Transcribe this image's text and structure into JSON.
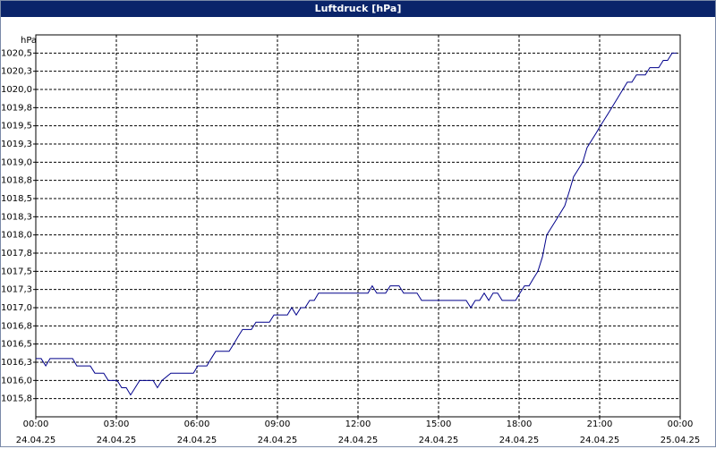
{
  "chart_data": {
    "type": "line",
    "title": "Luftdruck [hPa]",
    "y_label": "hPa",
    "xlim": [
      0,
      24
    ],
    "xticks": [
      {
        "value": 0,
        "label": "00:00\n24.04.25"
      },
      {
        "value": 3,
        "label": "03:00\n24.04.25"
      },
      {
        "value": 6,
        "label": "06:00\n24.04.25"
      },
      {
        "value": 9,
        "label": "09:00\n24.04.25"
      },
      {
        "value": 12,
        "label": "12:00\n24.04.25"
      },
      {
        "value": 15,
        "label": "15:00\n24.04.25"
      },
      {
        "value": 18,
        "label": "18:00\n24.04.25"
      },
      {
        "value": 21,
        "label": "21:00\n24.04.25"
      },
      {
        "value": 24,
        "label": "00:00\n25.04.25"
      }
    ],
    "ylim": [
      1015.5,
      1020.75
    ],
    "yticks": [
      {
        "value": 1015.75,
        "label": "1015,8"
      },
      {
        "value": 1016,
        "label": "1016,0"
      },
      {
        "value": 1016.25,
        "label": "1016,3"
      },
      {
        "value": 1016.5,
        "label": "1016,5"
      },
      {
        "value": 1016.75,
        "label": "1016,8"
      },
      {
        "value": 1017,
        "label": "1017,0"
      },
      {
        "value": 1017.25,
        "label": "1017,3"
      },
      {
        "value": 1017.5,
        "label": "1017,5"
      },
      {
        "value": 1017.75,
        "label": "1017,8"
      },
      {
        "value": 1018,
        "label": "1018,0"
      },
      {
        "value": 1018.25,
        "label": "1018,3"
      },
      {
        "value": 1018.5,
        "label": "1018,5"
      },
      {
        "value": 1018.75,
        "label": "1018,8"
      },
      {
        "value": 1019,
        "label": "1019,0"
      },
      {
        "value": 1019.25,
        "label": "1019,3"
      },
      {
        "value": 1019.5,
        "label": "1019,5"
      },
      {
        "value": 1019.75,
        "label": "1019,8"
      },
      {
        "value": 1020,
        "label": "1020,0"
      },
      {
        "value": 1020.25,
        "label": "1020,3"
      },
      {
        "value": 1020.5,
        "label": "1020,5"
      }
    ],
    "grid": true,
    "series": [
      {
        "color": "#00008b",
        "x": [
          0,
          0.2,
          0.37,
          0.53,
          1.37,
          1.53,
          2.03,
          2.2,
          2.53,
          2.7,
          3.03,
          3.2,
          3.37,
          3.53,
          3.7,
          3.87,
          4.37,
          4.53,
          4.7,
          5.03,
          5.87,
          6.03,
          6.37,
          6.53,
          6.7,
          7.2,
          7.37,
          7.53,
          7.7,
          8.03,
          8.2,
          8.7,
          8.87,
          9.37,
          9.53,
          9.7,
          9.87,
          10.03,
          10.2,
          10.37,
          10.53,
          12.37,
          12.53,
          12.7,
          13.03,
          13.2,
          13.53,
          13.7,
          14.2,
          14.37,
          16.03,
          16.2,
          16.37,
          16.53,
          16.7,
          16.87,
          17.03,
          17.2,
          17.37,
          17.87,
          18.03,
          18.2,
          18.37,
          18.53,
          18.7,
          18.87,
          19.03,
          19.37,
          19.7,
          19.87,
          20.03,
          20.37,
          20.53,
          20.87,
          21.03,
          21.37,
          21.7,
          22.03,
          22.2,
          22.37,
          22.7,
          22.87,
          23.2,
          23.37,
          23.53,
          23.7,
          23.87
        ],
        "values": [
          1016.3,
          1016.3,
          1016.2,
          1016.3,
          1016.3,
          1016.2,
          1016.2,
          1016.1,
          1016.1,
          1016.0,
          1016.0,
          1015.9,
          1015.9,
          1015.8,
          1015.9,
          1016.0,
          1016.0,
          1015.9,
          1016.0,
          1016.1,
          1016.1,
          1016.2,
          1016.2,
          1016.3,
          1016.4,
          1016.4,
          1016.5,
          1016.6,
          1016.7,
          1016.7,
          1016.8,
          1016.8,
          1016.9,
          1016.9,
          1017.0,
          1016.9,
          1017.0,
          1017.0,
          1017.1,
          1017.1,
          1017.2,
          1017.2,
          1017.3,
          1017.2,
          1017.2,
          1017.3,
          1017.3,
          1017.2,
          1017.2,
          1017.1,
          1017.1,
          1017.0,
          1017.1,
          1017.1,
          1017.2,
          1017.1,
          1017.2,
          1017.2,
          1017.1,
          1017.1,
          1017.2,
          1017.3,
          1017.3,
          1017.4,
          1017.5,
          1017.7,
          1018.0,
          1018.2,
          1018.4,
          1018.6,
          1018.8,
          1019.0,
          1019.2,
          1019.4,
          1019.5,
          1019.7,
          1019.9,
          1020.1,
          1020.1,
          1020.2,
          1020.2,
          1020.3,
          1020.3,
          1020.4,
          1020.4,
          1020.5,
          1020.5
        ]
      }
    ]
  }
}
